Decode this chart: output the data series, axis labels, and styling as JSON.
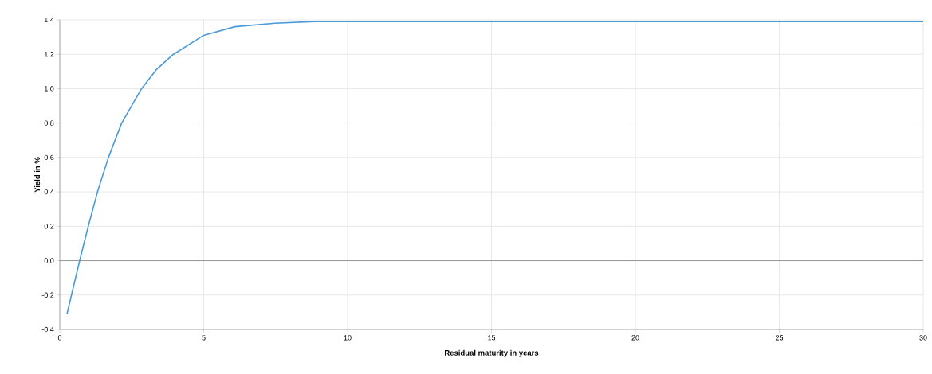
{
  "chart_data": {
    "type": "line",
    "xlabel": "Residual maturity in years",
    "ylabel": "Yield in %",
    "series": [
      {
        "color": "#4a9ad8",
        "x": [
          0.25,
          0.69,
          0.99,
          1.31,
          1.69,
          2.15,
          2.84,
          3.35,
          3.95,
          5,
          6.08,
          7.47,
          8.86,
          10,
          15,
          20,
          25,
          30
        ],
        "values": [
          -0.31,
          0,
          0.2,
          0.4,
          0.6,
          0.8,
          1.0,
          1.11,
          1.2,
          1.31,
          1.36,
          1.38,
          1.39,
          1.39,
          1.39,
          1.39,
          1.39,
          1.39
        ]
      }
    ],
    "xlim": [
      0,
      30
    ],
    "xticks": [
      0,
      5,
      10,
      15,
      20,
      25,
      30
    ],
    "ylim": [
      -0.4,
      1.4
    ],
    "yticks": [
      -0.4,
      -0.2,
      {
        "value": 0,
        "label": "0.0"
      },
      0.2,
      0.4,
      0.6,
      0.8,
      {
        "value": 1,
        "label": "1.0"
      },
      1.2,
      1.4
    ],
    "grid": true,
    "legend": false,
    "marker": "none",
    "line_style": "solid",
    "ref_lines": [
      {
        "axis": "y",
        "value": 0,
        "color": "#8c8c8c"
      }
    ]
  }
}
